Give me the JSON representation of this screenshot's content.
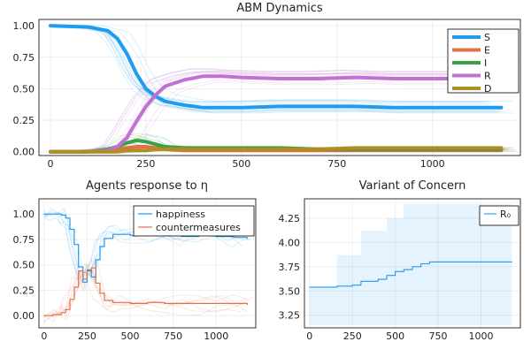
{
  "chart_data": [
    {
      "type": "line",
      "title": "ABM Dynamics",
      "xlabel": "",
      "ylabel": "",
      "xlim": [
        -30,
        1230
      ],
      "ylim": [
        -0.03,
        1.05
      ],
      "xticks": [
        0,
        250,
        500,
        750,
        1000
      ],
      "yticks": [
        0.0,
        0.25,
        0.5,
        0.75,
        1.0
      ],
      "ytick_labels": [
        "0.00",
        "0.25",
        "0.50",
        "0.75",
        "1.00"
      ],
      "grid": true,
      "legend_position": "top-right",
      "x": [
        0,
        100,
        150,
        175,
        200,
        225,
        250,
        275,
        300,
        350,
        400,
        450,
        500,
        600,
        700,
        800,
        900,
        1000,
        1100,
        1180
      ],
      "series": [
        {
          "name": "S",
          "color": "#1f9bf0",
          "values": [
            1.0,
            0.99,
            0.96,
            0.9,
            0.78,
            0.62,
            0.5,
            0.44,
            0.4,
            0.37,
            0.35,
            0.35,
            0.35,
            0.36,
            0.36,
            0.36,
            0.35,
            0.35,
            0.35,
            0.35
          ]
        },
        {
          "name": "E",
          "color": "#e26f46",
          "values": [
            0.0,
            0.0,
            0.01,
            0.02,
            0.03,
            0.04,
            0.04,
            0.03,
            0.02,
            0.01,
            0.01,
            0.01,
            0.01,
            0.01,
            0.01,
            0.01,
            0.01,
            0.01,
            0.01,
            0.01
          ]
        },
        {
          "name": "I",
          "color": "#3aa14a",
          "values": [
            0.0,
            0.0,
            0.02,
            0.04,
            0.07,
            0.09,
            0.08,
            0.06,
            0.04,
            0.03,
            0.03,
            0.03,
            0.03,
            0.03,
            0.02,
            0.02,
            0.02,
            0.02,
            0.02,
            0.02
          ]
        },
        {
          "name": "R",
          "color": "#c271d2",
          "values": [
            0.0,
            0.0,
            0.01,
            0.04,
            0.11,
            0.24,
            0.36,
            0.45,
            0.52,
            0.57,
            0.6,
            0.6,
            0.59,
            0.58,
            0.58,
            0.59,
            0.58,
            0.58,
            0.58,
            0.58
          ]
        },
        {
          "name": "D",
          "color": "#ad8e1f",
          "values": [
            0.0,
            0.0,
            0.0,
            0.0,
            0.01,
            0.01,
            0.01,
            0.02,
            0.02,
            0.02,
            0.02,
            0.02,
            0.02,
            0.02,
            0.02,
            0.03,
            0.03,
            0.03,
            0.03,
            0.03
          ]
        }
      ]
    },
    {
      "type": "line",
      "title": "Agents response to η",
      "xlabel": "",
      "ylabel": "",
      "xlim": [
        -30,
        1230
      ],
      "ylim": [
        -0.12,
        1.15
      ],
      "xticks": [
        0,
        250,
        500,
        750,
        1000
      ],
      "yticks": [
        0.0,
        0.25,
        0.5,
        0.75,
        1.0
      ],
      "ytick_labels": [
        "0.00",
        "0.25",
        "0.50",
        "0.75",
        "1.00"
      ],
      "grid": true,
      "legend_position": "top-right",
      "x": [
        0,
        50,
        100,
        125,
        150,
        175,
        200,
        225,
        250,
        275,
        300,
        325,
        350,
        400,
        450,
        500,
        600,
        700,
        800,
        900,
        1000,
        1100,
        1180
      ],
      "series": [
        {
          "name": "happiness",
          "color": "#1f9bf0",
          "values": [
            1.0,
            1.0,
            0.99,
            0.96,
            0.85,
            0.7,
            0.48,
            0.33,
            0.45,
            0.38,
            0.55,
            0.68,
            0.76,
            0.8,
            0.8,
            0.79,
            0.79,
            0.8,
            0.78,
            0.79,
            0.78,
            0.77,
            0.76
          ]
        },
        {
          "name": "countermeasures",
          "color": "#e26f46",
          "values": [
            0.0,
            0.01,
            0.03,
            0.06,
            0.16,
            0.28,
            0.44,
            0.36,
            0.44,
            0.47,
            0.32,
            0.22,
            0.15,
            0.13,
            0.13,
            0.12,
            0.13,
            0.12,
            0.12,
            0.12,
            0.12,
            0.12,
            0.11
          ]
        }
      ]
    },
    {
      "type": "line",
      "title": "Variant of Concern",
      "xlabel": "",
      "ylabel": "",
      "xlim": [
        -30,
        1230
      ],
      "ylim": [
        3.12,
        4.45
      ],
      "xticks": [
        0,
        250,
        500,
        750,
        1000
      ],
      "yticks": [
        3.25,
        3.5,
        3.75,
        4.0,
        4.25
      ],
      "ytick_labels": [
        "3.25",
        "3.50",
        "3.75",
        "4.00",
        "4.25"
      ],
      "grid": true,
      "legend_position": "top-right",
      "x": [
        0,
        160,
        250,
        300,
        400,
        450,
        500,
        550,
        600,
        650,
        700,
        800,
        900,
        1000,
        1100,
        1180
      ],
      "series": [
        {
          "name": "R₀",
          "color": "#1f9bf0",
          "values": [
            3.54,
            3.55,
            3.56,
            3.6,
            3.62,
            3.66,
            3.7,
            3.72,
            3.75,
            3.78,
            3.8,
            3.8,
            3.8,
            3.8,
            3.8,
            3.8
          ]
        }
      ],
      "band": {
        "lower": [
          3.15,
          3.15,
          3.15,
          3.15,
          3.15,
          3.15,
          3.15,
          3.15,
          3.15,
          3.15,
          3.15,
          3.15,
          3.15,
          3.15,
          3.15,
          3.15
        ],
        "upper": [
          3.54,
          3.87,
          3.87,
          4.12,
          4.12,
          4.25,
          4.25,
          4.4,
          4.4,
          4.4,
          4.4,
          4.4,
          4.4,
          4.4,
          4.4,
          4.4
        ]
      }
    }
  ]
}
